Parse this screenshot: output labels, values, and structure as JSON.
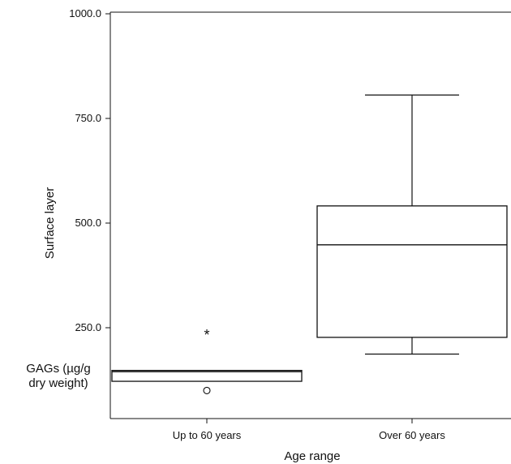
{
  "chart_data": {
    "type": "box",
    "title": "",
    "xlabel": "Age range",
    "ylabel": "Surface layer",
    "ylabel_secondary_lines": [
      "GAGs (µg/g",
      "dry weight)"
    ],
    "ylim": [
      0,
      1000
    ],
    "yticks": [
      250,
      500,
      750,
      1000
    ],
    "ytick_labels": [
      "250.0",
      "500.0",
      "750.0",
      "1000.0"
    ],
    "grid": false,
    "categories": [
      "Up to 60 years",
      "Over 60 years"
    ],
    "boxes": [
      {
        "category": "Up to 60 years",
        "whisker_low": 122,
        "q1": 122,
        "median": 145,
        "q3": 148,
        "whisker_high": 148,
        "outliers": [
          {
            "value": 100,
            "marker": "circle"
          }
        ],
        "extremes": [
          {
            "value": 238,
            "marker": "*"
          }
        ]
      },
      {
        "category": "Over 60 years",
        "whisker_low": 187,
        "q1": 227,
        "median": 448,
        "q3": 541,
        "whisker_high": 806,
        "outliers": [],
        "extremes": []
      }
    ]
  }
}
